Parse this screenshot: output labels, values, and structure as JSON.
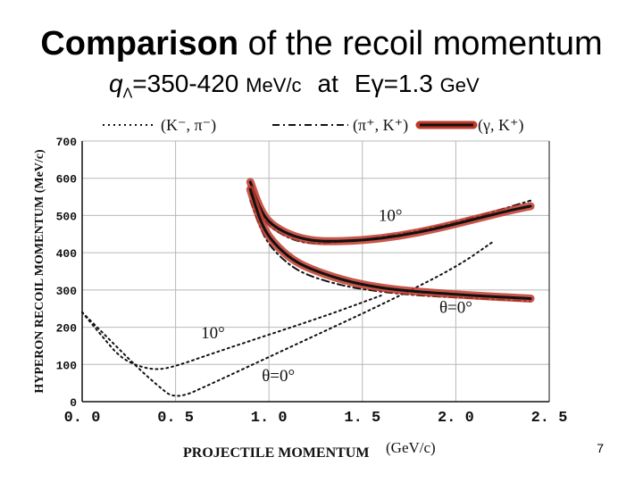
{
  "slide": {
    "title_bold": "Comparison",
    "title_rest": " of the recoil momentum",
    "subtitle_q": "q",
    "subtitle_lambda": "Λ",
    "subtitle_range": "=350-420 ",
    "subtitle_unit1": "MeV/c",
    "subtitle_at": "at",
    "subtitle_e": "E",
    "subtitle_gamma": "γ",
    "subtitle_energy": "=1.3 ",
    "subtitle_unit2": "GeV",
    "page_number": "7"
  },
  "colors": {
    "highlight": "#c0392b",
    "ink": "#111111",
    "grid": "#b8b8b8"
  },
  "chart_data": {
    "type": "line",
    "xlabel": "PROJECTILE MOMENTUM",
    "xlabel_unit": "(GeV/c)",
    "ylabel": "HYPERON RECOIL MOMENTUM (MeV/c)",
    "xlim": [
      0.0,
      2.5
    ],
    "ylim": [
      0,
      700
    ],
    "xticks": [
      "0. 0",
      "0. 5",
      "1. 0",
      "1. 5",
      "2. 0",
      "2. 5"
    ],
    "xtick_values": [
      0.0,
      0.5,
      1.0,
      1.5,
      2.0,
      2.5
    ],
    "yticks": [
      "0",
      "100",
      "200",
      "300",
      "400",
      "500",
      "600",
      "700"
    ],
    "ytick_values": [
      0,
      100,
      200,
      300,
      400,
      500,
      600,
      700
    ],
    "grid": true,
    "legend_position": "top",
    "legend": [
      {
        "label": "(K⁻, π⁻)",
        "style": "dotted"
      },
      {
        "label": "(π⁺, K⁺)",
        "style": "dash-dot"
      },
      {
        "label": "(γ, K⁺)",
        "style": "solid-highlight"
      }
    ],
    "series": [
      {
        "name": "(K⁻, π⁻)",
        "angle": "θ=0°",
        "style": "dotted",
        "x": [
          0.0,
          0.1,
          0.2,
          0.3,
          0.4,
          0.5,
          0.7,
          1.0,
          1.3,
          1.6,
          2.0,
          2.2
        ],
        "y": [
          240,
          190,
          140,
          90,
          45,
          5,
          50,
          120,
          190,
          260,
          360,
          430
        ]
      },
      {
        "name": "(K⁻, π⁻)",
        "angle": "10°",
        "style": "dotted",
        "x": [
          0.0,
          0.1,
          0.2,
          0.3,
          0.4,
          0.5,
          0.7,
          1.0,
          1.3,
          1.6
        ],
        "y": [
          240,
          180,
          120,
          95,
          85,
          95,
          130,
          180,
          230,
          285
        ]
      },
      {
        "name": "(π⁺, K⁺)",
        "angle": "10°",
        "style": "dash-dot",
        "x": [
          0.9,
          0.95,
          1.0,
          1.1,
          1.2,
          1.3,
          1.5,
          1.7,
          1.9,
          2.1,
          2.3,
          2.4
        ],
        "y": [
          560,
          510,
          470,
          440,
          425,
          425,
          435,
          450,
          470,
          495,
          525,
          540
        ]
      },
      {
        "name": "(π⁺, K⁺)",
        "angle": "θ=0°",
        "style": "dash-dot",
        "x": [
          0.9,
          0.95,
          1.0,
          1.1,
          1.2,
          1.4,
          1.6,
          1.8,
          2.0,
          2.2,
          2.4
        ],
        "y": [
          540,
          470,
          420,
          370,
          340,
          310,
          295,
          285,
          280,
          275,
          270
        ]
      },
      {
        "name": "(γ, K⁺)",
        "angle": "10°",
        "style": "solid-highlight",
        "x": [
          0.9,
          0.95,
          1.0,
          1.1,
          1.2,
          1.3,
          1.5,
          1.7,
          1.9,
          2.1,
          2.3,
          2.4
        ],
        "y": [
          590,
          520,
          480,
          450,
          435,
          430,
          433,
          445,
          465,
          490,
          515,
          525
        ]
      },
      {
        "name": "(γ, K⁺)",
        "angle": "θ=0°",
        "style": "solid-highlight",
        "x": [
          0.9,
          0.95,
          1.0,
          1.1,
          1.2,
          1.4,
          1.6,
          1.8,
          2.0,
          2.2,
          2.4
        ],
        "y": [
          570,
          490,
          440,
          390,
          360,
          325,
          305,
          295,
          288,
          282,
          277
        ]
      }
    ],
    "annotations": [
      {
        "text": "10°",
        "x": 1.65,
        "y": 485
      },
      {
        "text": "θ=0°",
        "x": 2.0,
        "y": 238
      },
      {
        "text": "10°",
        "x": 0.7,
        "y": 170
      },
      {
        "text": "θ=0°",
        "x": 1.05,
        "y": 55
      }
    ]
  }
}
